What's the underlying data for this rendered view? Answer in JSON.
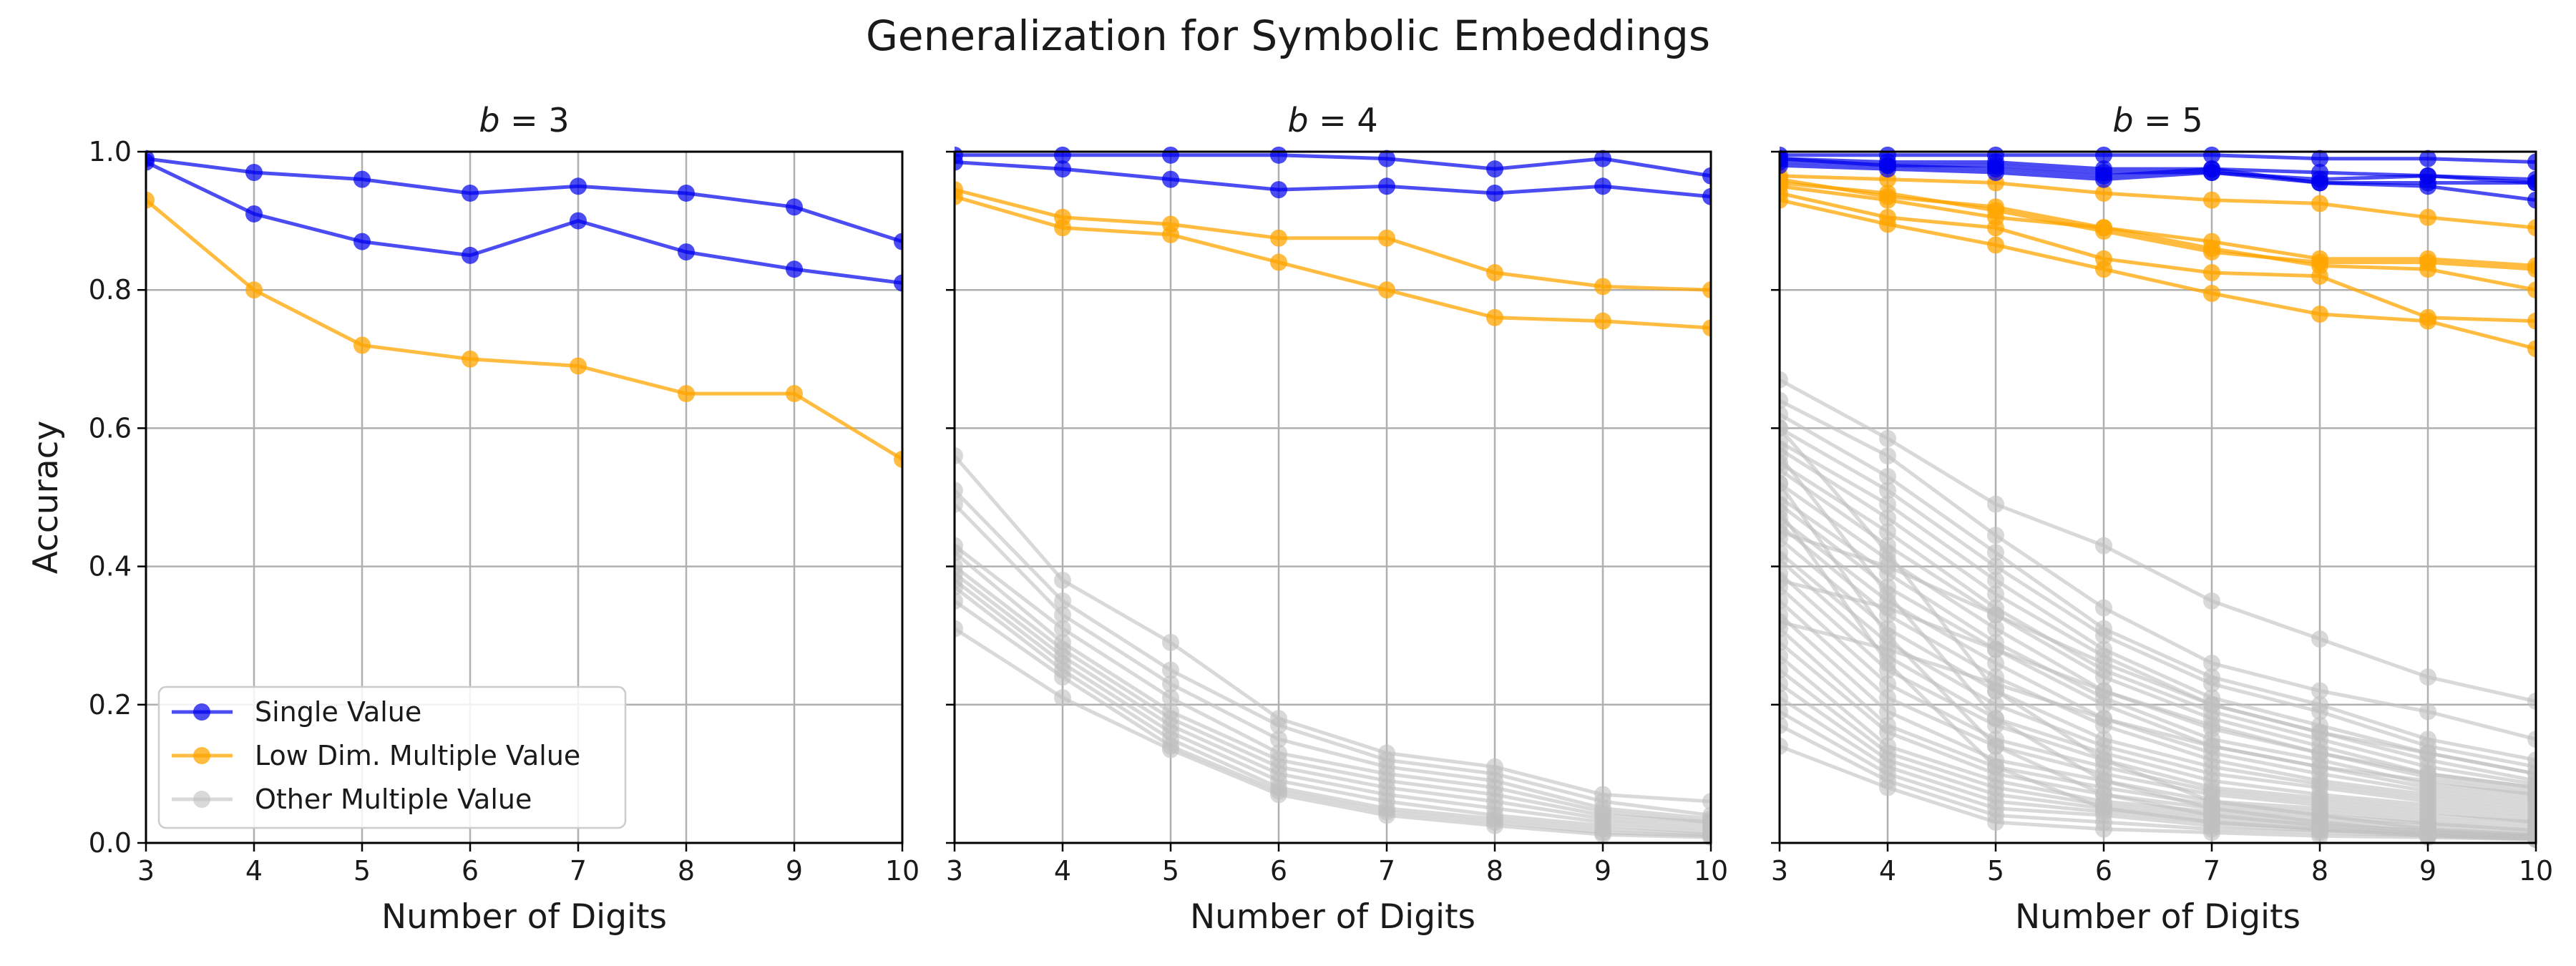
{
  "chart_data": {
    "type": "line",
    "title": "Generalization for Symbolic Embeddings",
    "xlabel": "Number of Digits",
    "ylabel": "Accuracy",
    "x": [
      3,
      4,
      5,
      6,
      7,
      8,
      9,
      10
    ],
    "xlim": [
      3,
      10
    ],
    "ylim": [
      0,
      1
    ],
    "xticks": [
      "3",
      "4",
      "5",
      "6",
      "7",
      "8",
      "9",
      "10"
    ],
    "yticks": [
      "0.0",
      "0.2",
      "0.4",
      "0.6",
      "0.8",
      "1.0"
    ],
    "grid": true,
    "legend": {
      "position": "lower-left",
      "entries": [
        {
          "label": "Single Value",
          "color": "#0000ee"
        },
        {
          "label": "Low Dim. Multiple Value",
          "color": "#ffa500"
        },
        {
          "label": "Other Multiple Value",
          "color": "#bfbfbf"
        }
      ]
    },
    "panels": [
      {
        "title_var": "b",
        "title_eq": " = 3",
        "series": [
          {
            "group": "Single Value",
            "values": [
              0.99,
              0.97,
              0.96,
              0.94,
              0.95,
              0.94,
              0.92,
              0.87
            ]
          },
          {
            "group": "Single Value",
            "values": [
              0.985,
              0.91,
              0.87,
              0.85,
              0.9,
              0.855,
              0.83,
              0.81
            ]
          },
          {
            "group": "Low Dim. Multiple Value",
            "values": [
              0.93,
              0.8,
              0.72,
              0.7,
              0.69,
              0.65,
              0.65,
              0.555
            ]
          }
        ]
      },
      {
        "title_var": "b",
        "title_eq": " = 4",
        "series": [
          {
            "group": "Single Value",
            "values": [
              0.995,
              0.995,
              0.995,
              0.995,
              0.99,
              0.975,
              0.99,
              0.965
            ]
          },
          {
            "group": "Single Value",
            "values": [
              0.985,
              0.975,
              0.96,
              0.945,
              0.95,
              0.94,
              0.95,
              0.935
            ]
          },
          {
            "group": "Low Dim. Multiple Value",
            "values": [
              0.945,
              0.905,
              0.895,
              0.875,
              0.875,
              0.825,
              0.805,
              0.8
            ]
          },
          {
            "group": "Low Dim. Multiple Value",
            "values": [
              0.935,
              0.89,
              0.88,
              0.84,
              0.8,
              0.76,
              0.755,
              0.745
            ]
          },
          {
            "group": "Other Multiple Value",
            "values": [
              0.56,
              0.38,
              0.29,
              0.18,
              0.13,
              0.11,
              0.07,
              0.06
            ]
          },
          {
            "group": "Other Multiple Value",
            "values": [
              0.51,
              0.35,
              0.25,
              0.17,
              0.12,
              0.1,
              0.06,
              0.04
            ]
          },
          {
            "group": "Other Multiple Value",
            "values": [
              0.49,
              0.33,
              0.23,
              0.15,
              0.11,
              0.09,
              0.05,
              0.035
            ]
          },
          {
            "group": "Other Multiple Value",
            "values": [
              0.43,
              0.31,
              0.21,
              0.13,
              0.1,
              0.08,
              0.045,
              0.03
            ]
          },
          {
            "group": "Other Multiple Value",
            "values": [
              0.42,
              0.29,
              0.19,
              0.12,
              0.09,
              0.07,
              0.04,
              0.03
            ]
          },
          {
            "group": "Other Multiple Value",
            "values": [
              0.4,
              0.28,
              0.18,
              0.11,
              0.08,
              0.06,
              0.035,
              0.025
            ]
          },
          {
            "group": "Other Multiple Value",
            "values": [
              0.39,
              0.27,
              0.17,
              0.1,
              0.07,
              0.05,
              0.03,
              0.02
            ]
          },
          {
            "group": "Other Multiple Value",
            "values": [
              0.38,
              0.26,
              0.16,
              0.09,
              0.06,
              0.04,
              0.025,
              0.015
            ]
          },
          {
            "group": "Other Multiple Value",
            "values": [
              0.37,
              0.25,
              0.15,
              0.08,
              0.05,
              0.035,
              0.02,
              0.012
            ]
          },
          {
            "group": "Other Multiple Value",
            "values": [
              0.35,
              0.24,
              0.14,
              0.075,
              0.045,
              0.03,
              0.015,
              0.01
            ]
          },
          {
            "group": "Other Multiple Value",
            "values": [
              0.31,
              0.21,
              0.135,
              0.07,
              0.04,
              0.025,
              0.012,
              0.008
            ]
          }
        ]
      },
      {
        "title_var": "b",
        "title_eq": " = 5",
        "series": [
          {
            "group": "Single Value",
            "values": [
              0.995,
              0.995,
              0.995,
              0.995,
              0.995,
              0.99,
              0.99,
              0.985
            ]
          },
          {
            "group": "Single Value",
            "values": [
              0.99,
              0.985,
              0.985,
              0.975,
              0.975,
              0.97,
              0.965,
              0.96
            ]
          },
          {
            "group": "Single Value",
            "values": [
              0.99,
              0.98,
              0.98,
              0.97,
              0.97,
              0.96,
              0.965,
              0.955
            ]
          },
          {
            "group": "Single Value",
            "values": [
              0.985,
              0.98,
              0.975,
              0.965,
              0.975,
              0.955,
              0.955,
              0.955
            ]
          },
          {
            "group": "Single Value",
            "values": [
              0.98,
              0.975,
              0.97,
              0.96,
              0.97,
              0.955,
              0.95,
              0.93
            ]
          },
          {
            "group": "Low Dim. Multiple Value",
            "values": [
              0.965,
              0.96,
              0.955,
              0.94,
              0.93,
              0.925,
              0.905,
              0.89
            ]
          },
          {
            "group": "Low Dim. Multiple Value",
            "values": [
              0.96,
              0.935,
              0.92,
              0.89,
              0.87,
              0.845,
              0.845,
              0.835
            ]
          },
          {
            "group": "Low Dim. Multiple Value",
            "values": [
              0.955,
              0.94,
              0.915,
              0.885,
              0.855,
              0.84,
              0.84,
              0.83
            ]
          },
          {
            "group": "Low Dim. Multiple Value",
            "values": [
              0.95,
              0.93,
              0.905,
              0.89,
              0.86,
              0.835,
              0.83,
              0.8
            ]
          },
          {
            "group": "Low Dim. Multiple Value",
            "values": [
              0.94,
              0.905,
              0.89,
              0.845,
              0.825,
              0.82,
              0.76,
              0.755
            ]
          },
          {
            "group": "Low Dim. Multiple Value",
            "values": [
              0.93,
              0.895,
              0.865,
              0.83,
              0.795,
              0.765,
              0.755,
              0.715
            ]
          },
          {
            "group": "Other Multiple Value",
            "values": [
              0.67,
              0.585,
              0.49,
              0.43,
              0.35,
              0.295,
              0.24,
              0.205
            ]
          },
          {
            "group": "Other Multiple Value",
            "values": [
              0.64,
              0.56,
              0.445,
              0.34,
              0.26,
              0.22,
              0.19,
              0.15
            ]
          },
          {
            "group": "Other Multiple Value",
            "values": [
              0.62,
              0.53,
              0.42,
              0.31,
              0.24,
              0.2,
              0.15,
              0.12
            ]
          },
          {
            "group": "Other Multiple Value",
            "values": [
              0.6,
              0.51,
              0.4,
              0.3,
              0.23,
              0.19,
              0.14,
              0.11
            ]
          },
          {
            "group": "Other Multiple Value",
            "values": [
              0.58,
              0.49,
              0.38,
              0.28,
              0.21,
              0.17,
              0.13,
              0.1
            ]
          },
          {
            "group": "Other Multiple Value",
            "values": [
              0.57,
              0.47,
              0.36,
              0.27,
              0.2,
              0.16,
              0.12,
              0.09
            ]
          },
          {
            "group": "Other Multiple Value",
            "values": [
              0.55,
              0.45,
              0.34,
              0.25,
              0.19,
              0.15,
              0.11,
              0.085
            ]
          },
          {
            "group": "Other Multiple Value",
            "values": [
              0.54,
              0.43,
              0.33,
              0.24,
              0.18,
              0.14,
              0.1,
              0.08
            ]
          },
          {
            "group": "Other Multiple Value",
            "values": [
              0.52,
              0.41,
              0.31,
              0.22,
              0.165,
              0.13,
              0.095,
              0.075
            ]
          },
          {
            "group": "Other Multiple Value",
            "values": [
              0.5,
              0.39,
              0.29,
              0.21,
              0.15,
              0.12,
              0.085,
              0.07
            ]
          },
          {
            "group": "Other Multiple Value",
            "values": [
              0.49,
              0.37,
              0.28,
              0.2,
              0.14,
              0.11,
              0.08,
              0.065
            ]
          },
          {
            "group": "Other Multiple Value",
            "values": [
              0.47,
              0.35,
              0.26,
              0.18,
              0.13,
              0.1,
              0.075,
              0.06
            ]
          },
          {
            "group": "Other Multiple Value",
            "values": [
              0.46,
              0.33,
              0.24,
              0.17,
              0.12,
              0.09,
              0.07,
              0.055
            ]
          },
          {
            "group": "Other Multiple Value",
            "values": [
              0.44,
              0.31,
              0.22,
              0.15,
              0.11,
              0.085,
              0.065,
              0.05
            ]
          },
          {
            "group": "Other Multiple Value",
            "values": [
              0.42,
              0.29,
              0.2,
              0.14,
              0.1,
              0.08,
              0.06,
              0.045
            ]
          },
          {
            "group": "Other Multiple Value",
            "values": [
              0.41,
              0.27,
              0.18,
              0.13,
              0.09,
              0.07,
              0.055,
              0.04
            ]
          },
          {
            "group": "Other Multiple Value",
            "values": [
              0.39,
              0.25,
              0.17,
              0.12,
              0.08,
              0.065,
              0.05,
              0.035
            ]
          },
          {
            "group": "Other Multiple Value",
            "values": [
              0.37,
              0.23,
              0.15,
              0.11,
              0.075,
              0.06,
              0.045,
              0.03
            ]
          },
          {
            "group": "Other Multiple Value",
            "values": [
              0.35,
              0.21,
              0.14,
              0.1,
              0.07,
              0.055,
              0.04,
              0.03
            ]
          },
          {
            "group": "Other Multiple Value",
            "values": [
              0.33,
              0.19,
              0.12,
              0.09,
              0.06,
              0.05,
              0.035,
              0.025
            ]
          },
          {
            "group": "Other Multiple Value",
            "values": [
              0.31,
              0.17,
              0.11,
              0.08,
              0.055,
              0.045,
              0.03,
              0.02
            ]
          },
          {
            "group": "Other Multiple Value",
            "values": [
              0.29,
              0.16,
              0.1,
              0.07,
              0.05,
              0.04,
              0.028,
              0.018
            ]
          },
          {
            "group": "Other Multiple Value",
            "values": [
              0.27,
              0.14,
              0.09,
              0.06,
              0.045,
              0.035,
              0.025,
              0.015
            ]
          },
          {
            "group": "Other Multiple Value",
            "values": [
              0.25,
              0.13,
              0.08,
              0.055,
              0.04,
              0.03,
              0.02,
              0.012
            ]
          },
          {
            "group": "Other Multiple Value",
            "values": [
              0.23,
              0.12,
              0.07,
              0.05,
              0.035,
              0.025,
              0.018,
              0.01
            ]
          },
          {
            "group": "Other Multiple Value",
            "values": [
              0.21,
              0.11,
              0.06,
              0.045,
              0.03,
              0.02,
              0.015,
              0.01
            ]
          },
          {
            "group": "Other Multiple Value",
            "values": [
              0.19,
              0.1,
              0.05,
              0.04,
              0.025,
              0.018,
              0.012,
              0.008
            ]
          },
          {
            "group": "Other Multiple Value",
            "values": [
              0.17,
              0.09,
              0.04,
              0.03,
              0.02,
              0.015,
              0.01,
              0.006
            ]
          },
          {
            "group": "Other Multiple Value",
            "values": [
              0.14,
              0.08,
              0.03,
              0.02,
              0.015,
              0.01,
              0.008,
              0.005
            ]
          },
          {
            "group": "Other Multiple Value",
            "values": [
              0.6,
              0.42,
              0.22,
              0.12,
              0.06,
              0.04,
              0.02,
              0.01
            ]
          },
          {
            "group": "Other Multiple Value",
            "values": [
              0.56,
              0.36,
              0.18,
              0.09,
              0.05,
              0.03,
              0.015,
              0.008
            ]
          },
          {
            "group": "Other Multiple Value",
            "values": [
              0.52,
              0.3,
              0.14,
              0.07,
              0.04,
              0.025,
              0.012,
              0.006
            ]
          },
          {
            "group": "Other Multiple Value",
            "values": [
              0.48,
              0.26,
              0.11,
              0.05,
              0.03,
              0.02,
              0.01,
              0.005
            ]
          },
          {
            "group": "Other Multiple Value",
            "values": [
              0.45,
              0.4,
              0.33,
              0.26,
              0.2,
              0.16,
              0.13,
              0.1
            ]
          },
          {
            "group": "Other Multiple Value",
            "values": [
              0.38,
              0.34,
              0.28,
              0.22,
              0.17,
              0.13,
              0.1,
              0.08
            ]
          },
          {
            "group": "Other Multiple Value",
            "values": [
              0.32,
              0.28,
              0.23,
              0.18,
              0.14,
              0.11,
              0.09,
              0.07
            ]
          }
        ]
      }
    ]
  }
}
